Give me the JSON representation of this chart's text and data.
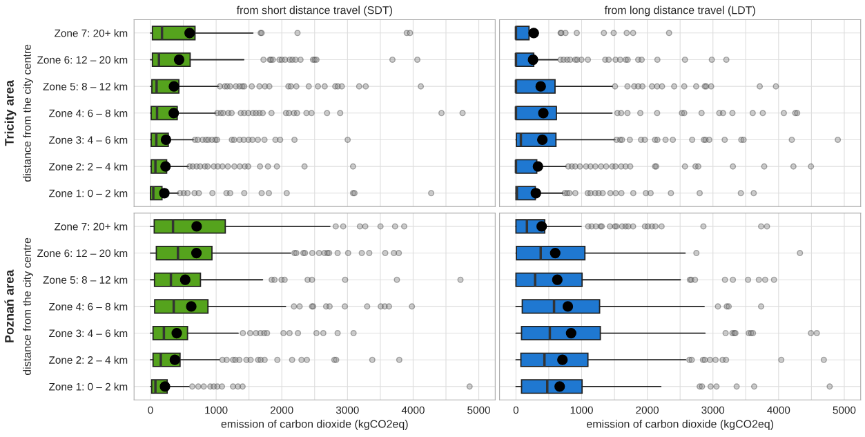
{
  "chart_data": [
    {
      "type": "box",
      "orientation": "horizontal",
      "title": "from short distance travel (SDT)",
      "ylabel": "distance from the city centre",
      "annotations": [
        "Tricity area"
      ],
      "tick_labels": "y",
      "grid": true,
      "categories": [
        "Zone 7: 20+ km",
        "Zone 6: 12 – 20 km",
        "Zone 5: 8 – 12 km",
        "Zone 4: 6 – 8 km",
        "Zone 3: 4 – 6 km",
        "Zone 2: 2 – 4 km",
        "Zone 1: 0 – 2 km"
      ],
      "xlim": [
        -250,
        5250
      ],
      "xticks": [
        0,
        {
          "value": 500,
          "label": null
        },
        1000,
        {
          "value": 1500,
          "label": null
        },
        2000,
        {
          "value": 2500,
          "label": null
        },
        3000,
        {
          "value": 3500,
          "label": null
        },
        4000,
        {
          "value": 4500,
          "label": null
        },
        5000
      ],
      "series": [
        {
          "color": "#55a31d",
          "boxes": [
            {
              "low": 0,
              "q1": 29,
              "median": 175,
              "q3": 678,
              "high": 1560,
              "mean": 596,
              "outliers": [
                1678,
                1693,
                2239,
                3903,
                3953
              ]
            },
            {
              "low": 0,
              "q1": 29,
              "median": 129,
              "q3": 604,
              "high": 1421,
              "mean": 436,
              "outliers": [
                1721,
                1818,
                1836,
                1864,
                1964,
                2000,
                2050,
                2121,
                2161,
                2210,
                2285,
                2475,
                2500,
                2528,
                3685,
                4064
              ]
            },
            {
              "low": 0,
              "q1": 21,
              "median": 93,
              "q3": 432,
              "high": 1036,
              "mean": 357,
              "outliers": [
                1057,
                1132,
                1168,
                1214,
                1300,
                1357,
                1400,
                1428,
                1543,
                1660,
                1743,
                1810,
                2100,
                2139,
                2221,
                2410,
                2550,
                2653,
                2814,
                2853,
                2914,
                3178,
                3278,
                4117
              ]
            },
            {
              "low": 0,
              "q1": 11,
              "median": 100,
              "q3": 407,
              "high": 996,
              "mean": 354,
              "outliers": [
                1018,
                1071,
                1107,
                1186,
                1236,
                1375,
                1428,
                1489,
                1560,
                1607,
                1660,
                1710,
                1843,
                2064,
                2110,
                2185,
                2232,
                2375,
                2453,
                2689,
                2889,
                4432,
                4753
              ]
            },
            {
              "low": 0,
              "q1": 11,
              "median": 89,
              "q3": 271,
              "high": 657,
              "mean": 236,
              "outliers": [
                678,
                721,
                793,
                846,
                882,
                936,
                989,
                1014,
                1239,
                1275,
                1357,
                1421,
                1493,
                1553,
                1636,
                1736,
                1903,
                1975,
                2193,
                3003
              ]
            },
            {
              "low": 0,
              "q1": 11,
              "median": 75,
              "q3": 246,
              "high": 579,
              "mean": 229,
              "outliers": [
                596,
                643,
                703,
                757,
                828,
                871,
                964,
                1025,
                1096,
                1178,
                1278,
                1360,
                1436,
                1489,
                1668,
                1789,
                1925,
                2346,
                3085
              ]
            },
            {
              "low": 0,
              "q1": 0,
              "median": 43,
              "q3": 175,
              "high": 425,
              "mean": 211,
              "outliers": [
                450,
                507,
                564,
                671,
                736,
                943,
                1157,
                1214,
                1428,
                1693,
                1803,
                2075,
                3085,
                3107,
                4275
              ]
            }
          ]
        }
      ]
    },
    {
      "type": "box",
      "orientation": "horizontal",
      "title": "from long distance travel (LDT)",
      "tick_labels": false,
      "grid": true,
      "xlim": [
        -250,
        5250
      ],
      "xticks": [
        0,
        {
          "value": 500,
          "label": null
        },
        1000,
        {
          "value": 1500,
          "label": null
        },
        2000,
        {
          "value": 2500,
          "label": null
        },
        3000,
        {
          "value": 3500,
          "label": null
        },
        4000,
        {
          "value": 4500,
          "label": null
        },
        5000
      ],
      "series": [
        {
          "color": "#1f78d1",
          "boxes": [
            {
              "low": 0,
              "q1": 0,
              "median": 0,
              "q3": 199,
              "high": 345,
              "mean": 271,
              "outliers": [
                680,
                691,
                755,
                926,
                1339,
                1488,
                1687,
                1784,
                2332
              ]
            },
            {
              "low": 0,
              "q1": 0,
              "median": 0,
              "q3": 271,
              "high": 634,
              "mean": 260,
              "outliers": [
                680,
                726,
                780,
                826,
                904,
                933,
                997,
                1096,
                1360,
                1413,
                1517,
                1588,
                1673,
                1702,
                1862,
                1915,
                2154,
                2574,
                2983,
                3204
              ]
            },
            {
              "low": 0,
              "q1": 0,
              "median": 0,
              "q3": 595,
              "high": 1467,
              "mean": 377,
              "outliers": [
                1509,
                1698,
                1801,
                1862,
                1926,
                2072,
                2150,
                2225,
                2410,
                2563,
                2745,
                2876,
                2898,
                2973,
                3713,
                3959
              ]
            },
            {
              "low": 0,
              "q1": 0,
              "median": 0,
              "q3": 616,
              "high": 1463,
              "mean": 417,
              "outliers": [
                1545,
                1602,
                1698,
                1894,
                2150,
                2528,
                2563,
                2827,
                3097,
                3154,
                3297,
                3606,
                3759,
                4080,
                4254,
                4283
              ]
            },
            {
              "low": 0,
              "q1": 7,
              "median": 75,
              "q3": 609,
              "high": 1509,
              "mean": 402,
              "outliers": [
                1531,
                1588,
                1616,
                1734,
                1905,
                1962,
                2118,
                2154,
                2278,
                2389,
                2684,
                2862,
                2887,
                2944,
                3179,
                3432,
                3467,
                4201,
                4902
              ]
            },
            {
              "low": 0,
              "q1": 0,
              "median": 0,
              "q3": 317,
              "high": 762,
              "mean": 335,
              "outliers": [
                797,
                851,
                904,
                975,
                1068,
                1136,
                1210,
                1296,
                1374,
                1467,
                1517,
                1602,
                1670,
                1741,
                2118,
                2136,
                2574,
                2734,
                2777,
                3304,
                3781,
                4226,
                4493
              ]
            },
            {
              "low": 0,
              "q1": 0,
              "median": 14,
              "q3": 295,
              "high": 719,
              "mean": 303,
              "outliers": [
                744,
                780,
                815,
                904,
                1093,
                1136,
                1207,
                1260,
                1321,
                1438,
                1520,
                1606,
                1787,
                1979,
                2051,
                2360,
                2798,
                3425,
                3621
              ]
            }
          ]
        }
      ]
    },
    {
      "type": "box",
      "orientation": "horizontal",
      "xlabel": "emission of carbon dioxide (kgCO2eq)",
      "ylabel": "distance from the city centre",
      "annotations": [
        "Poznań area"
      ],
      "grid": true,
      "categories": [
        "Zone 7: 20+ km",
        "Zone 6: 12 – 20 km",
        "Zone 5: 8 – 12 km",
        "Zone 4: 6 – 8 km",
        "Zone 3: 4 – 6 km",
        "Zone 2: 2 – 4 km",
        "Zone 1: 0 – 2 km"
      ],
      "xlim": [
        -250,
        5250
      ],
      "xticks": [
        0,
        {
          "value": 500,
          "label": null
        },
        1000,
        {
          "value": 1500,
          "label": null
        },
        2000,
        {
          "value": 2500,
          "label": null
        },
        3000,
        {
          "value": 3500,
          "label": null
        },
        4000,
        {
          "value": 4500,
          "label": null
        },
        5000
      ],
      "series": [
        {
          "color": "#55a31d",
          "boxes": [
            {
              "low": 0,
              "q1": 57,
              "median": 343,
              "q3": 1139,
              "high": 2732,
              "mean": 703,
              "outliers": [
                2821,
                2935,
                3189,
                3271,
                3503,
                3725,
                3864
              ]
            },
            {
              "low": 0,
              "q1": 89,
              "median": 418,
              "q3": 936,
              "high": 2135,
              "mean": 700,
              "outliers": [
                2193,
                2221,
                2328,
                2353,
                2464,
                2568,
                2650,
                2696,
                2721,
                2850,
                3010,
                3218,
                3332,
                3575,
                3707,
                3782
              ]
            },
            {
              "low": 0,
              "q1": 61,
              "median": 311,
              "q3": 761,
              "high": 1707,
              "mean": 529,
              "outliers": [
                1846,
                1889,
                1996,
                2043,
                2393,
                2460,
                2964,
                3753,
                4721
              ]
            },
            {
              "low": 0,
              "q1": 64,
              "median": 354,
              "q3": 875,
              "high": 2057,
              "mean": 621,
              "outliers": [
                2185,
                2271,
                2460,
                2478,
                2675,
                2728,
                2960,
                3300,
                3507,
                3568,
                3632,
                3982
              ]
            },
            {
              "low": 0,
              "q1": 39,
              "median": 204,
              "q3": 564,
              "high": 1336,
              "mean": 400,
              "outliers": [
                1407,
                1518,
                1607,
                1675,
                1732,
                1775,
                2025,
                2118,
                2246,
                2528,
                2632,
                2850,
                3093
              ]
            },
            {
              "low": 0,
              "q1": 39,
              "median": 157,
              "q3": 450,
              "high": 1050,
              "mean": 371,
              "outliers": [
                1096,
                1161,
                1257,
                1293,
                1353,
                1461,
                1525,
                1639,
                1678,
                1739,
                1932,
                2157,
                2300,
                2382,
                2800,
                2828,
                3378,
                3789
              ]
            },
            {
              "low": 0,
              "q1": 18,
              "median": 75,
              "q3": 254,
              "high": 586,
              "mean": 221,
              "outliers": [
                636,
                728,
                811,
                911,
                964,
                1018,
                1089,
                1257,
                1332,
                1403,
                4860
              ]
            }
          ]
        }
      ]
    },
    {
      "type": "box",
      "orientation": "horizontal",
      "xlabel": "emission of carbon dioxide (kgCO2eq)",
      "tick_labels": "x",
      "grid": true,
      "xlim": [
        -250,
        5250
      ],
      "xticks": [
        0,
        {
          "value": 500,
          "label": null
        },
        1000,
        {
          "value": 1500,
          "label": null
        },
        2000,
        {
          "value": 2500,
          "label": null
        },
        3000,
        {
          "value": 3500,
          "label": null
        },
        4000,
        {
          "value": 4500,
          "label": null
        },
        5000
      ],
      "series": [
        {
          "color": "#1f78d1",
          "boxes": [
            {
              "low": 0,
              "q1": 0,
              "median": 167,
              "q3": 438,
              "high": 993,
              "mean": 392,
              "outliers": [
                1100,
                1153,
                1218,
                1289,
                1307,
                1431,
                1509,
                1531,
                1616,
                1670,
                1712,
                1784,
                1965,
                2011,
                2072,
                2125,
                2218,
                2855,
                3734,
                3823
              ]
            },
            {
              "low": 0,
              "q1": 7,
              "median": 377,
              "q3": 1050,
              "high": 2577,
              "mean": 598,
              "outliers": [
                2748,
                4325
              ]
            },
            {
              "low": 0,
              "q1": 0,
              "median": 292,
              "q3": 1007,
              "high": 2503,
              "mean": 630,
              "outliers": [
                2649,
                2670,
                2727,
                3183,
                3304,
                3535,
                3699,
                3795,
                3930
              ]
            },
            {
              "low": 0,
              "q1": 96,
              "median": 580,
              "q3": 1274,
              "high": 2866,
              "mean": 790,
              "outliers": [
                3076,
                3211,
                3240,
                3734
              ]
            },
            {
              "low": 0,
              "q1": 85,
              "median": 516,
              "q3": 1285,
              "high": 2880,
              "mean": 840,
              "outliers": [
                3193,
                3297,
                3325,
                3343,
                3546,
                3581,
                3610,
                4493,
                4582
              ]
            },
            {
              "low": 0,
              "q1": 75,
              "median": 434,
              "q3": 1096,
              "high": 2585,
              "mean": 708,
              "outliers": [
                2641,
                2677,
                2848,
                2876,
                2955,
                3040,
                3147,
                3200,
                4041,
                4689
              ]
            },
            {
              "low": 0,
              "q1": 85,
              "median": 477,
              "q3": 1007,
              "high": 2207,
              "mean": 666,
              "outliers": [
                2798,
                2834,
                2965,
                3054,
                3361,
                3628,
                4778
              ]
            }
          ]
        }
      ]
    }
  ]
}
